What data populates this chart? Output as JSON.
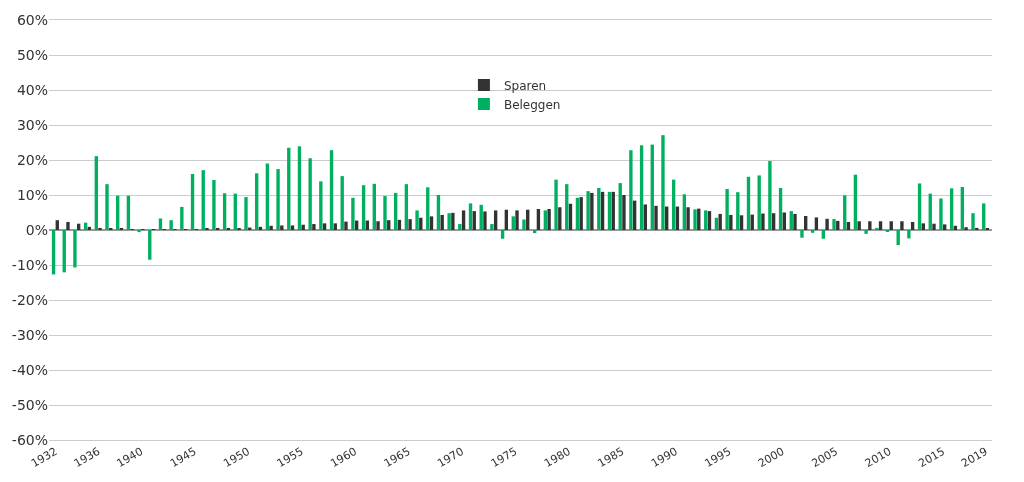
{
  "chart_data": {
    "type": "bar",
    "categories": [
      "1932",
      null,
      null,
      null,
      "1936",
      null,
      null,
      null,
      "1940",
      null,
      null,
      null,
      null,
      "1945",
      null,
      null,
      null,
      null,
      "1950",
      null,
      null,
      null,
      null,
      "1955",
      null,
      null,
      null,
      null,
      "1960",
      null,
      null,
      null,
      null,
      "1965",
      null,
      null,
      null,
      null,
      "1970",
      null,
      null,
      null,
      null,
      "1975",
      null,
      null,
      null,
      null,
      "1980",
      null,
      null,
      null,
      null,
      "1985",
      null,
      null,
      null,
      null,
      "1990",
      null,
      null,
      null,
      null,
      "1995",
      null,
      null,
      null,
      null,
      "2000",
      null,
      null,
      null,
      null,
      "2005",
      null,
      null,
      null,
      null,
      "2010",
      null,
      null,
      null,
      null,
      "2015",
      null,
      null,
      null,
      "2019"
    ],
    "series": [
      {
        "name": "Sparen",
        "color": "#333333",
        "values": [
          2.8,
          2.3,
          1.8,
          0.9,
          0.6,
          0.4,
          0.3,
          0.2,
          0.1,
          0.1,
          0.1,
          0.1,
          0.1,
          0.2,
          0.3,
          0.4,
          0.5,
          0.5,
          0.7,
          0.9,
          1.2,
          1.3,
          1.3,
          1.5,
          1.7,
          1.9,
          1.9,
          2.4,
          2.7,
          2.7,
          2.5,
          2.8,
          2.9,
          3.1,
          3.5,
          3.9,
          4.3,
          4.9,
          5.6,
          5.4,
          5.3,
          5.6,
          5.8,
          5.6,
          5.8,
          6.0,
          6.0,
          6.5,
          7.5,
          9.4,
          10.6,
          10.9,
          10.9,
          10.0,
          8.4,
          7.3,
          6.9,
          6.7,
          6.7,
          6.5,
          6.1,
          5.4,
          4.6,
          4.3,
          4.2,
          4.4,
          4.7,
          4.8,
          5.0,
          4.6,
          4.0,
          3.6,
          3.2,
          2.6,
          2.3,
          2.5,
          2.5,
          2.5,
          2.5,
          2.5,
          2.3,
          1.9,
          1.8,
          1.6,
          1.2,
          0.8,
          0.6,
          0.4
        ]
      },
      {
        "name": "Beleggen",
        "color": "#00b060",
        "values": [
          -12.7,
          -12.1,
          -10.7,
          2.1,
          21.1,
          13.1,
          9.8,
          9.8,
          -0.6,
          -8.5,
          3.3,
          2.8,
          6.6,
          16.0,
          17.1,
          14.3,
          10.5,
          10.4,
          9.4,
          16.2,
          19.0,
          17.4,
          23.5,
          23.9,
          20.5,
          13.9,
          22.8,
          15.4,
          9.2,
          12.8,
          13.2,
          9.7,
          10.6,
          13.1,
          5.6,
          12.2,
          10.0,
          4.8,
          1.7,
          7.6,
          7.2,
          1.7,
          -2.5,
          3.9,
          3.0,
          -0.9,
          5.6,
          14.4,
          13.1,
          9.2,
          11.1,
          12.0,
          10.9,
          13.4,
          22.8,
          24.2,
          24.4,
          27.1,
          14.4,
          10.2,
          5.9,
          5.6,
          3.5,
          11.7,
          10.8,
          15.2,
          15.6,
          19.7,
          12.0,
          5.4,
          -2.2,
          -0.8,
          -2.5,
          3.1,
          9.9,
          15.8,
          -1.1,
          0.6,
          -0.5,
          -4.3,
          -2.4,
          13.3,
          10.4,
          9.0,
          11.9,
          12.3,
          4.8,
          7.6
        ]
      }
    ],
    "ylim": [
      -60,
      60
    ],
    "yticks": [
      {
        "value": -60,
        "label": "-60%"
      },
      {
        "value": -50,
        "label": "-50%"
      },
      {
        "value": -40,
        "label": "-40%"
      },
      {
        "value": -30,
        "label": "-30%"
      },
      {
        "value": -20,
        "label": "-20%"
      },
      {
        "value": -10,
        "label": "-10%"
      },
      {
        "value": 0,
        "label": "0%"
      },
      {
        "value": 10,
        "label": "10%"
      },
      {
        "value": 20,
        "label": "20%"
      },
      {
        "value": 30,
        "label": "30%"
      },
      {
        "value": 40,
        "label": "40%"
      },
      {
        "value": 50,
        "label": "50%"
      },
      {
        "value": 60,
        "label": "60%"
      }
    ],
    "grid": "y",
    "legend": "top"
  }
}
